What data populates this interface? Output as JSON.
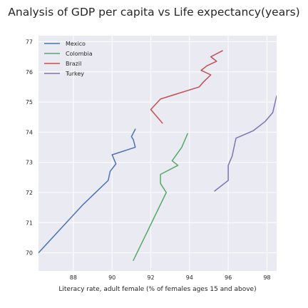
{
  "chart_data": {
    "type": "line",
    "title": "Analysis of GDP per capita vs Life expectancy(years)",
    "xlabel": "Literacy rate, adult female (% of females ages 15 and above)",
    "ylabel": "",
    "xlim": [
      86.2,
      98.5
    ],
    "ylim": [
      69.4,
      77.2
    ],
    "xticks": [
      88,
      90,
      92,
      94,
      96,
      98
    ],
    "yticks": [
      70,
      71,
      72,
      73,
      74,
      75,
      76,
      77
    ],
    "grid": true,
    "legend_position": "top-left",
    "series": [
      {
        "name": "Mexico",
        "color": "#4c72b0",
        "points": [
          [
            86.2,
            70.0
          ],
          [
            88.5,
            71.6
          ],
          [
            89.8,
            72.4
          ],
          [
            89.9,
            72.7
          ],
          [
            90.2,
            72.95
          ],
          [
            90.0,
            73.25
          ],
          [
            91.2,
            73.5
          ],
          [
            91.1,
            73.75
          ],
          [
            91.0,
            73.85
          ],
          [
            91.2,
            74.1
          ]
        ]
      },
      {
        "name": "Colombia",
        "color": "#55a868",
        "points": [
          [
            91.1,
            69.75
          ],
          [
            92.8,
            72.0
          ],
          [
            92.5,
            72.3
          ],
          [
            92.5,
            72.6
          ],
          [
            93.4,
            72.9
          ],
          [
            93.1,
            73.05
          ],
          [
            93.6,
            73.5
          ],
          [
            93.9,
            73.95
          ]
        ]
      },
      {
        "name": "Brazil",
        "color": "#c44e52",
        "points": [
          [
            92.6,
            74.3
          ],
          [
            92.0,
            74.75
          ],
          [
            92.5,
            75.1
          ],
          [
            93.5,
            75.3
          ],
          [
            94.5,
            75.5
          ],
          [
            94.7,
            75.65
          ],
          [
            95.1,
            75.9
          ],
          [
            94.6,
            76.05
          ],
          [
            94.9,
            76.2
          ],
          [
            95.4,
            76.35
          ],
          [
            95.1,
            76.5
          ],
          [
            95.7,
            76.7
          ]
        ]
      },
      {
        "name": "Turkey",
        "color": "#8172b2",
        "points": [
          [
            95.3,
            72.05
          ],
          [
            96.0,
            72.4
          ],
          [
            96.0,
            72.6
          ],
          [
            96.0,
            72.9
          ],
          [
            96.2,
            73.2
          ],
          [
            96.4,
            73.8
          ],
          [
            97.3,
            74.05
          ],
          [
            97.9,
            74.35
          ],
          [
            98.3,
            74.65
          ],
          [
            98.5,
            75.2
          ]
        ]
      }
    ]
  },
  "colors": {
    "plot_background": "#eaeaf2",
    "grid": "#ffffff",
    "text": "#262626"
  }
}
